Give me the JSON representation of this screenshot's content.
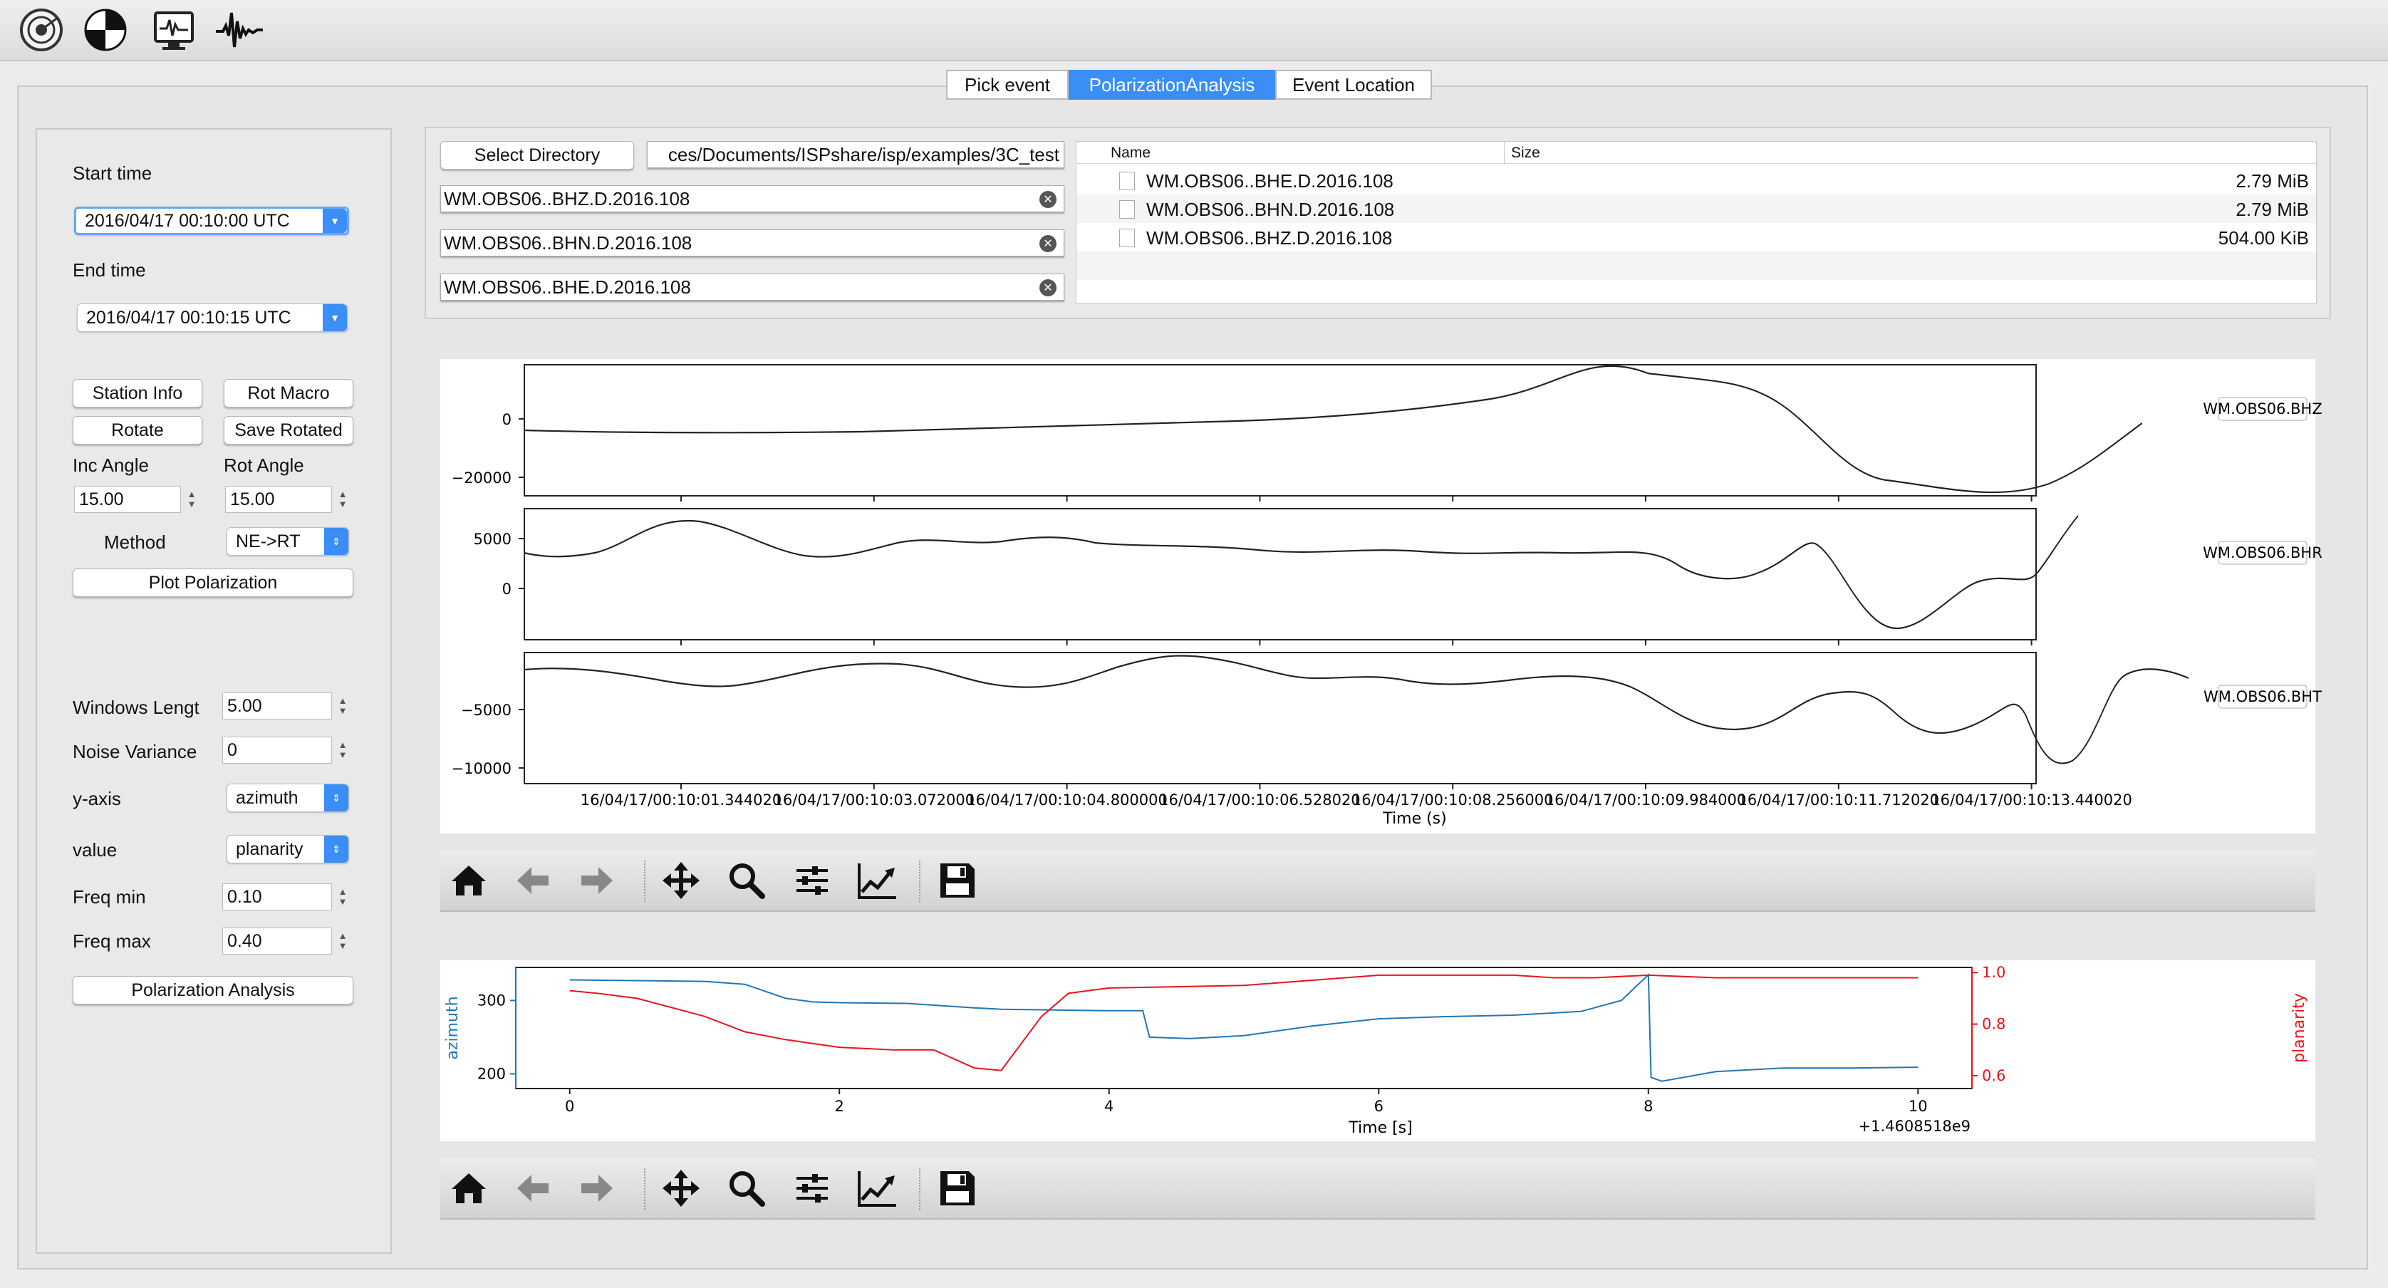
{
  "tabs": [
    {
      "label": "Pick event",
      "active": false
    },
    {
      "label": "PolarizationAnalysis",
      "active": true
    },
    {
      "label": "Event Location",
      "active": false
    }
  ],
  "toolbar_icons": [
    "seismometer-icon",
    "focal-mechanism-icon",
    "monitor-waveform-icon",
    "waveform-icon"
  ],
  "left": {
    "start_time_label": "Start time",
    "start_time_value": "2016/04/17 00:10:00 UTC",
    "end_time_label": "End time",
    "end_time_value": "2016/04/17 00:10:15 UTC",
    "station_info": "Station Info",
    "rot_macro": "Rot Macro",
    "rotate": "Rotate",
    "save_rotated": "Save Rotated",
    "inc_angle_label": "Inc Angle",
    "rot_angle_label": "Rot Angle",
    "inc_angle_value": "15.00",
    "rot_angle_value": "15.00",
    "method_label": "Method",
    "method_value": "NE->RT",
    "plot_polarization": "Plot Polarization",
    "window_label": "Windows Lengt",
    "window_value": "5.00",
    "noise_label": "Noise Variance",
    "noise_value": "0",
    "yaxis_label": "y-axis",
    "yaxis_value": "azimuth",
    "value_label": "value",
    "value_value": "planarity",
    "freqmin_label": "Freq min",
    "freqmin_value": "0.10",
    "freqmax_label": "Freq max",
    "freqmax_value": "0.40",
    "polarization_analysis": "Polarization Analysis"
  },
  "files": {
    "select_directory": "Select Directory",
    "directory_path": "ces/Documents/ISPshare/isp/examples/3C_test",
    "field_z": "WM.OBS06..BHZ.D.2016.108",
    "field_n": "WM.OBS06..BHN.D.2016.108",
    "field_e": "WM.OBS06..BHE.D.2016.108",
    "col_name": "Name",
    "col_size": "Size",
    "rows": [
      {
        "name": "WM.OBS06..BHE.D.2016.108",
        "size": "2.79 MiB"
      },
      {
        "name": "WM.OBS06..BHN.D.2016.108",
        "size": "2.79 MiB"
      },
      {
        "name": "WM.OBS06..BHZ.D.2016.108",
        "size": "504.00 KiB"
      }
    ]
  },
  "seismogram": {
    "xlabel": "Time (s)",
    "xticks": [
      "16/04/17/00:10:01.344020",
      "16/04/17/00:10:03.072000",
      "16/04/17/00:10:04.800000",
      "16/04/17/00:10:06.528020",
      "16/04/17/00:10:08.256000",
      "16/04/17/00:10:09.984000",
      "16/04/17/00:10:11.712020",
      "16/04/17/00:10:13.440020"
    ],
    "traces": [
      {
        "label": "WM.OBS06.BHZ",
        "yticks": [
          "0",
          "−20000"
        ]
      },
      {
        "label": "WM.OBS06.BHR",
        "yticks": [
          "5000",
          "0"
        ]
      },
      {
        "label": "WM.OBS06.BHT",
        "yticks": [
          "−5000",
          "−10000"
        ]
      }
    ]
  },
  "chart_data": {
    "type": "line",
    "xlabel": "Time [s]",
    "offset_text": "+1.4608518e9",
    "xlim": [
      -0.4,
      10.4
    ],
    "xticks": [
      "0",
      "2",
      "4",
      "6",
      "8",
      "10"
    ],
    "left_axis": {
      "label": "azimuth",
      "color": "#1f77b4",
      "ylim": [
        180,
        345
      ],
      "ticks": [
        "200",
        "300"
      ]
    },
    "right_axis": {
      "label": "planarity",
      "color": "#e8141a",
      "ylim": [
        0.55,
        1.02
      ],
      "ticks": [
        "0.6",
        "0.8",
        "1.0"
      ]
    },
    "series": [
      {
        "name": "azimuth",
        "color": "#1f77b4",
        "axis": "left",
        "x": [
          0,
          0.5,
          1,
          1.3,
          1.6,
          1.8,
          2,
          2.5,
          3,
          3.2,
          4,
          4.25,
          4.3,
          4.6,
          5,
          5.5,
          6,
          6.5,
          7,
          7.5,
          7.8,
          8,
          8.02,
          8.1,
          8.5,
          9,
          9.5,
          10
        ],
        "y": [
          328,
          327,
          326,
          322,
          303,
          298,
          297,
          296,
          290,
          288,
          286,
          286,
          250,
          248,
          252,
          265,
          275,
          278,
          280,
          285,
          300,
          335,
          195,
          190,
          203,
          208,
          208,
          209
        ]
      },
      {
        "name": "planarity",
        "color": "#e8141a",
        "axis": "right",
        "x": [
          0,
          0.2,
          0.5,
          1,
          1.3,
          1.6,
          2,
          2.4,
          2.7,
          3,
          3.2,
          3.5,
          3.7,
          4,
          5,
          6,
          7,
          7.3,
          7.6,
          8,
          8.5,
          9,
          10
        ],
        "y": [
          0.93,
          0.92,
          0.9,
          0.83,
          0.77,
          0.74,
          0.71,
          0.7,
          0.7,
          0.63,
          0.62,
          0.83,
          0.92,
          0.94,
          0.95,
          0.99,
          0.99,
          0.98,
          0.98,
          0.99,
          0.98,
          0.98,
          0.98
        ]
      }
    ]
  }
}
